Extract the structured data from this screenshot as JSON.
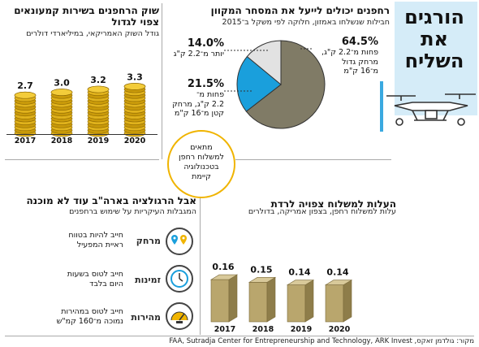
{
  "header": {
    "title_lines": [
      "הורגים",
      "את",
      "השליח"
    ]
  },
  "pie": {
    "title": "רחפנים יכולים לייעל את המסחר המקוון",
    "subtitle": "חבילות שנשלחו באמזון, חלוקה לפי משקל ב־2015",
    "slices": [
      {
        "pct": "64.5%",
        "label_lines": [
          "פחות מ־2.2 ק\"ג,",
          "מרחק גדול",
          "מ־16 ק\"מ"
        ],
        "value": 64.5,
        "color": "#807b66"
      },
      {
        "pct": "21.5%",
        "label_lines": [
          "פחות מ־",
          "2.2 ק\"ג, מרחק",
          "קטן מ־16 ק\"מ"
        ],
        "value": 21.5,
        "color": "#1a9fdc"
      },
      {
        "pct": "14.0%",
        "label_lines": [
          "יותר מ־2.2 ק\"ג"
        ],
        "value": 14.0,
        "color": "#e2e2e2"
      }
    ],
    "callout_lines": [
      "מתאים",
      "למשלוח רחפן",
      "בטכנולוגיה",
      "קיימת"
    ]
  },
  "chart_data": [
    {
      "type": "bar",
      "title": "שוק הרחפנים בשירות קמעונאים צפוי לגדול",
      "subtitle": "גודל השוק האמריקאי, במיליארדי דולרים",
      "categories": [
        "2017",
        "2018",
        "2019",
        "2020"
      ],
      "values": [
        2.7,
        3.0,
        3.2,
        3.3
      ],
      "ylim": [
        0,
        3.5
      ]
    },
    {
      "type": "bar",
      "title": "העלות למשלוח צפויה לרדת",
      "subtitle": "עלות למשלוח רחפן, בצפון אמריקה, בדולרים",
      "categories": [
        "2017",
        "2018",
        "2019",
        "2020"
      ],
      "values": [
        0.16,
        0.15,
        0.14,
        0.14
      ],
      "ylim": [
        0,
        0.2
      ]
    }
  ],
  "regulation": {
    "title": "אבל הרגולציה בארה\"ב עוד לא מוכנה",
    "subtitle": "המגבלות העיקריות על שימוש ברחפנים",
    "items": [
      {
        "tag": "מרחק",
        "desc_lines": [
          "חייב להיות בטווח",
          "ראיית המפעיל"
        ],
        "icon": "location-pins-icon"
      },
      {
        "tag": "זמינות",
        "desc_lines": [
          "חייב לטוס בשעות",
          "היום בלבד"
        ],
        "icon": "clock-icon"
      },
      {
        "tag": "מהירות",
        "desc_lines": [
          "חייב לטוס במהירות",
          "נמוכה מ־160 קמ\"ש"
        ],
        "icon": "speedometer-icon"
      }
    ]
  },
  "footer": {
    "source": "מקור: גולדמן זאקס, FAA, Sutradja Center for Entrepreneurship and Technology, ARK Invest"
  }
}
